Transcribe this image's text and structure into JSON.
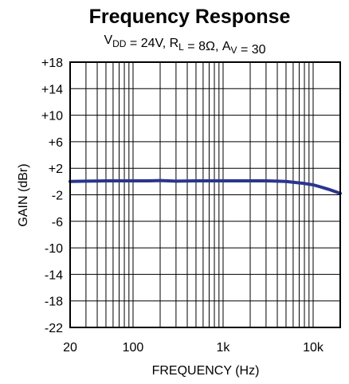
{
  "chart_data": {
    "type": "line",
    "title": "Frequency Response",
    "subtitle": {
      "parts": [
        {
          "text": "V",
          "sub": "DD"
        },
        {
          "text": " = 24V, R",
          "sub": "L"
        },
        {
          "text": " = 8Ω, A",
          "sub": "V"
        },
        {
          "text": " = 30",
          "sub": ""
        }
      ]
    },
    "xlabel": "FREQUENCY (Hz)",
    "ylabel": "GAIN (dBr)",
    "x_scale": "log",
    "xlim": [
      20,
      20000
    ],
    "ylim": [
      -22,
      18
    ],
    "x_ticks": [
      {
        "value": 20,
        "label": "20"
      },
      {
        "value": 100,
        "label": "100"
      },
      {
        "value": 1000,
        "label": "1k"
      },
      {
        "value": 10000,
        "label": "10k"
      }
    ],
    "y_ticks": [
      {
        "value": 18,
        "label": "+18"
      },
      {
        "value": 14,
        "label": "+14"
      },
      {
        "value": 10,
        "label": "+10"
      },
      {
        "value": 6,
        "label": "+6"
      },
      {
        "value": 2,
        "label": "+2"
      },
      {
        "value": -2,
        "label": "-2"
      },
      {
        "value": -6,
        "label": "-6"
      },
      {
        "value": -10,
        "label": "-10"
      },
      {
        "value": -14,
        "label": "-14"
      },
      {
        "value": -18,
        "label": "-18"
      },
      {
        "value": -22,
        "label": "-22"
      }
    ],
    "grid": true,
    "series": [
      {
        "color": "#2a3590",
        "x": [
          20,
          30,
          50,
          100,
          150,
          200,
          300,
          500,
          1000,
          2000,
          3000,
          4000,
          5000,
          6000,
          8000,
          10000,
          12000,
          15000,
          20000
        ],
        "y": [
          0,
          0.05,
          0.1,
          0.1,
          0.1,
          0.15,
          0.05,
          0.1,
          0.1,
          0.1,
          0.1,
          0.05,
          0.0,
          -0.1,
          -0.3,
          -0.5,
          -0.8,
          -1.2,
          -1.8
        ]
      }
    ]
  }
}
